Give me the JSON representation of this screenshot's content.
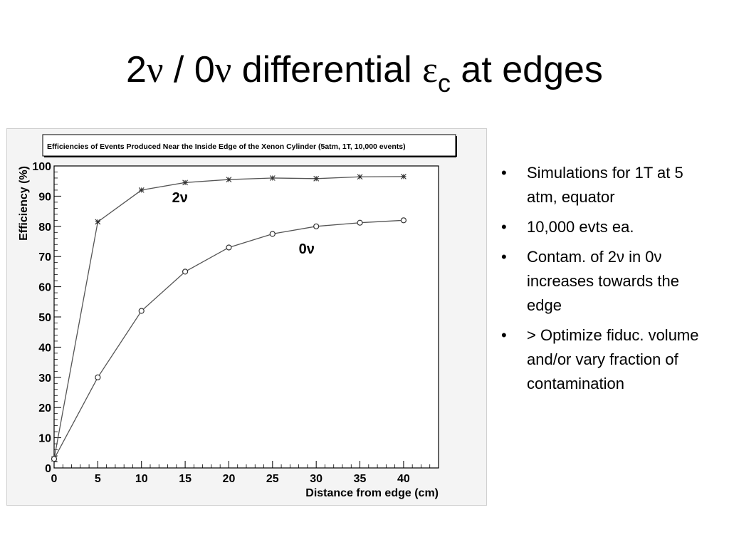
{
  "slide": {
    "title": {
      "part1": "2",
      "nu1": "ν",
      "part2": " / 0",
      "nu2": "ν",
      "part3": " differential ",
      "epsilon": "ε",
      "subscript": "c",
      "part4": " at edges"
    },
    "bullets": [
      "Simulations for 1T at 5 atm, equator",
      "10,000 evts ea.",
      "Contam. of 2ν in 0ν increases towards the edge",
      "> Optimize fiduc. volume and/or vary fraction of contamination"
    ],
    "bullet_symbol": "•"
  },
  "chart_data": {
    "type": "line",
    "title": "Efficiencies of Events Produced Near the Inside Edge of the Xenon Cylinder (5atm, 1T, 10,000 events)",
    "xlabel": "Distance from edge (cm)",
    "ylabel": "Efficiency (%)",
    "xlim": [
      0,
      44
    ],
    "ylim": [
      0,
      100
    ],
    "x": [
      0,
      5,
      10,
      15,
      20,
      25,
      30,
      35,
      40
    ],
    "x_ticks": [
      "0",
      "5",
      "10",
      "15",
      "20",
      "25",
      "30",
      "35",
      "40"
    ],
    "y_ticks": [
      "0",
      "10",
      "20",
      "30",
      "40",
      "50",
      "60",
      "70",
      "80",
      "90",
      "100"
    ],
    "grid": false,
    "series": [
      {
        "name": "2ν",
        "marker": "star",
        "values": [
          3,
          81.5,
          92,
          94.5,
          95.5,
          96,
          95.8,
          96.4,
          96.5
        ]
      },
      {
        "name": "0ν",
        "marker": "circle",
        "values": [
          3,
          30,
          52,
          65,
          73,
          77.5,
          80,
          81.2,
          82
        ]
      }
    ],
    "annotations": [
      {
        "text": "2ν",
        "x": 13.5,
        "y": 88
      },
      {
        "text": "0ν",
        "x": 28,
        "y": 71
      }
    ],
    "colors": {
      "line": "#555555",
      "frame_bg": "#f4f4f4",
      "text": "#000000"
    }
  }
}
